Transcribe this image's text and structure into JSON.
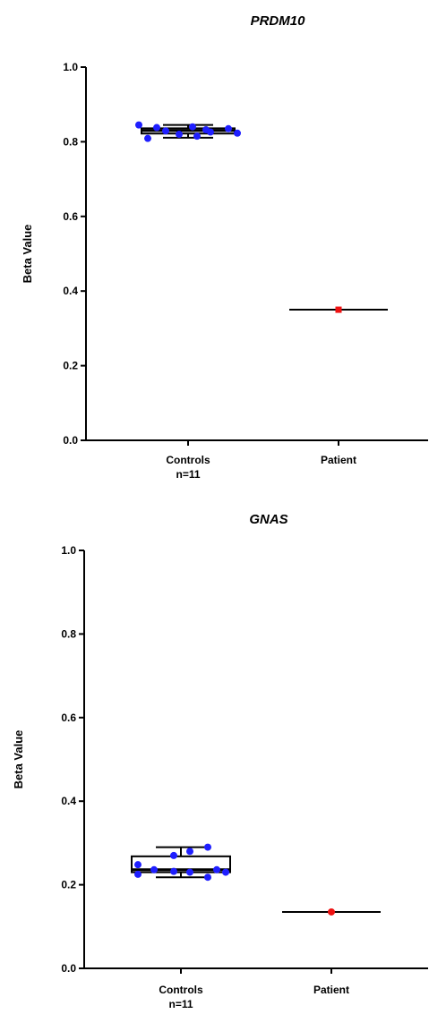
{
  "chart_data": [
    {
      "type": "box",
      "title": "PRDM10",
      "ylabel": "Beta Value",
      "xlabel": "",
      "ylim": [
        0,
        1.0
      ],
      "yticks": [
        "0.0",
        "0.2",
        "0.4",
        "0.6",
        "0.8",
        "1.0"
      ],
      "categories": [
        {
          "label": "Controls",
          "sublabel": "n=11"
        },
        {
          "label": "Patient",
          "sublabel": ""
        }
      ],
      "groups": [
        {
          "name": "Controls",
          "color": "#1f1fff",
          "marker": "circle",
          "box": {
            "min": 0.811,
            "q1": 0.822,
            "median": 0.83,
            "q3": 0.836,
            "max": 0.845
          },
          "points": [
            0.845,
            0.84,
            0.838,
            0.835,
            0.832,
            0.829,
            0.826,
            0.823,
            0.82,
            0.815,
            0.809
          ]
        },
        {
          "name": "Patient",
          "color": "#ee1111",
          "marker": "square",
          "value": 0.35,
          "points": [
            0.35
          ]
        }
      ]
    },
    {
      "type": "box",
      "title": "GNAS",
      "ylabel": "Beta Value",
      "xlabel": "",
      "ylim": [
        0,
        1.0
      ],
      "yticks": [
        "0.0",
        "0.2",
        "0.4",
        "0.6",
        "0.8",
        "1.0"
      ],
      "categories": [
        {
          "label": "Controls",
          "sublabel": "n=11"
        },
        {
          "label": "Patient",
          "sublabel": ""
        }
      ],
      "groups": [
        {
          "name": "Controls",
          "color": "#1f1fff",
          "marker": "circle",
          "box": {
            "min": 0.218,
            "q1": 0.23,
            "median": 0.236,
            "q3": 0.268,
            "max": 0.29
          },
          "points": [
            0.29,
            0.28,
            0.27,
            0.248,
            0.236,
            0.236,
            0.232,
            0.23,
            0.23,
            0.225,
            0.218
          ]
        },
        {
          "name": "Patient",
          "color": "#ee1111",
          "marker": "circle",
          "value": 0.135,
          "points": [
            0.135
          ]
        }
      ]
    }
  ]
}
